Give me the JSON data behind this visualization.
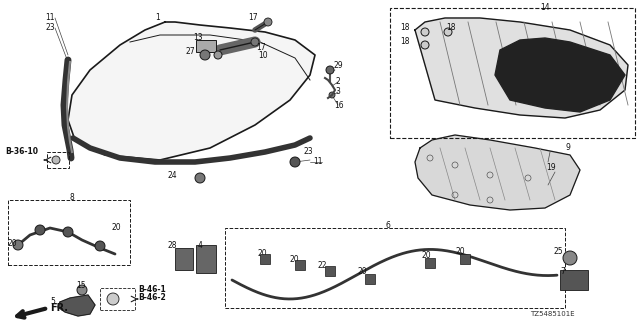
{
  "bg": "#ffffff",
  "lc": "#1a1a1a",
  "tc": "#111111",
  "part_code": "TZ5485101E",
  "figsize": [
    6.4,
    3.2
  ],
  "dpi": 100,
  "xlim": [
    0,
    640
  ],
  "ylim": [
    0,
    320
  ]
}
